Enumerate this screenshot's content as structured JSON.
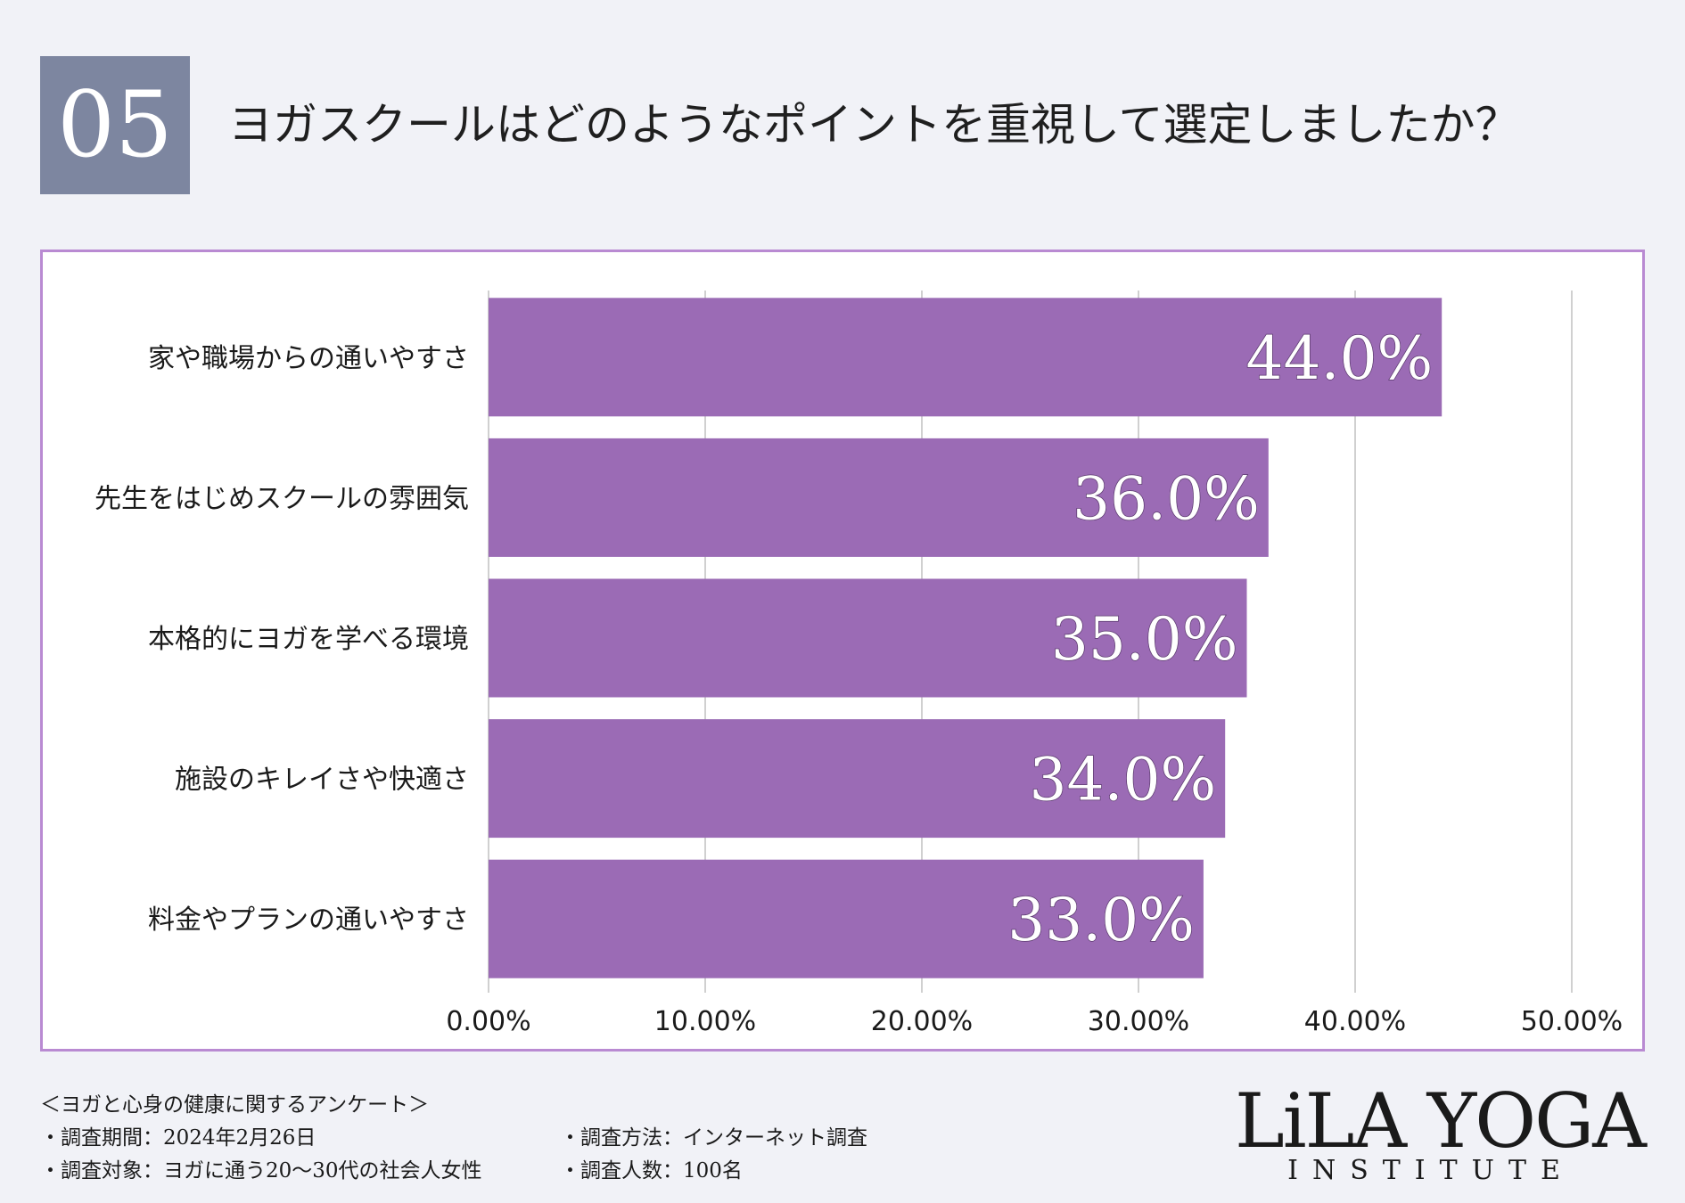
{
  "header": {
    "number": "05",
    "question": "ヨガスクールはどのようなポイントを重視して選定しましたか？"
  },
  "chart_data": {
    "type": "bar",
    "orientation": "horizontal",
    "categories": [
      "家や職場からの通いやすさ",
      "先生をはじめスクールの雰囲気",
      "本格的にヨガを学べる環境",
      "施設のキレイさや快適さ",
      "料金やプランの通いやすさ"
    ],
    "values": [
      44.0,
      36.0,
      35.0,
      34.0,
      33.0
    ],
    "data_labels": [
      "44.0%",
      "36.0%",
      "35.0%",
      "34.0%",
      "33.0%"
    ],
    "xlim": [
      0,
      50
    ],
    "x_ticks": [
      0,
      10,
      20,
      30,
      40,
      50
    ],
    "x_tick_labels": [
      "0.00%",
      "10.00%",
      "20.00%",
      "30.00%",
      "40.00%",
      "50.00%"
    ],
    "grid": "vertical",
    "bar_color": "#9b6bb5",
    "title": "",
    "xlabel": "",
    "ylabel": ""
  },
  "footer": {
    "survey_title": "＜ヨガと心身の健康に関するアンケート＞",
    "period": "・調査期間：2024年2月26日",
    "method": "・調査方法：インターネット調査",
    "target": "・調査対象：ヨガに通う20〜30代の社会人女性",
    "count": "・調査人数：100名"
  },
  "logo": {
    "main": "LiLA YOGA",
    "sub": "INSTITUTE"
  }
}
